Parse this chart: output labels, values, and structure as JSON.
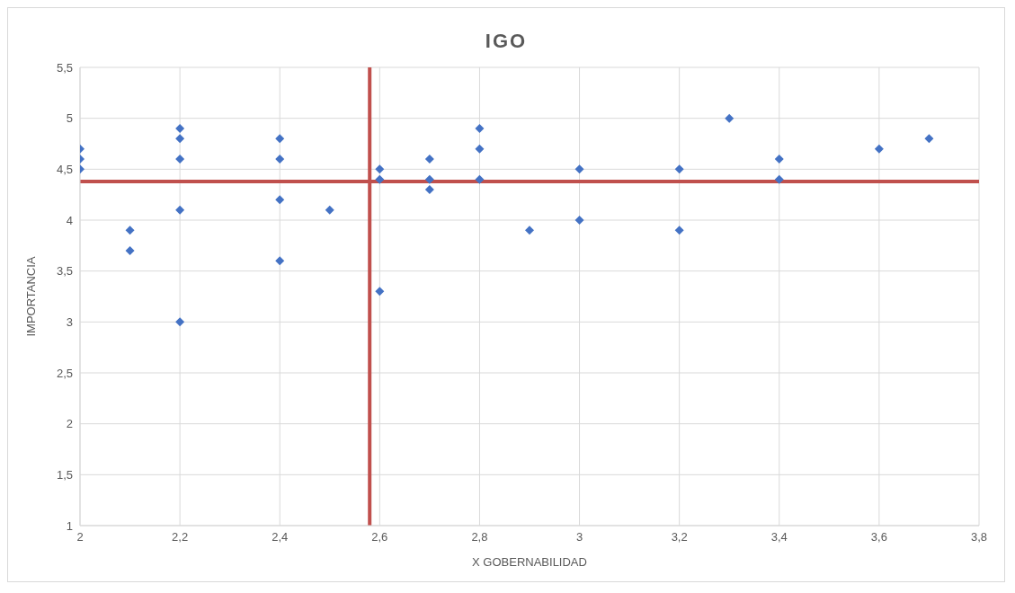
{
  "chart_data": {
    "type": "scatter",
    "title": "IGO",
    "xlabel": "X GOBERNABILIDAD",
    "ylabel": "IMPORTANCIA",
    "x": [
      2,
      2,
      2,
      2.1,
      2.1,
      2.2,
      2.2,
      2.2,
      2.2,
      2.2,
      2.4,
      2.4,
      2.4,
      2.4,
      2.5,
      2.6,
      2.6,
      2.6,
      2.7,
      2.7,
      2.7,
      2.8,
      2.8,
      2.8,
      2.9,
      3,
      3,
      3.2,
      3.2,
      3.3,
      3.4,
      3.4,
      3.6,
      3.7
    ],
    "series": [
      {
        "color": "#4472c4",
        "values": [
          4.7,
          4.6,
          4.5,
          3.9,
          3.7,
          4.9,
          4.8,
          4.6,
          4.1,
          3,
          4.8,
          4.6,
          4.2,
          3.6,
          4.1,
          4.5,
          4.4,
          3.3,
          4.6,
          4.4,
          4.3,
          4.9,
          4.7,
          4.4,
          3.9,
          4.5,
          4,
          4.5,
          3.9,
          5,
          4.6,
          4.4,
          4.7,
          4.8
        ]
      }
    ],
    "xlim": [
      2,
      3.8
    ],
    "xticks": [
      2,
      {
        "value": 2.2,
        "label": "2,2"
      },
      {
        "value": 2.4,
        "label": "2,4"
      },
      {
        "value": 2.6,
        "label": "2,6"
      },
      {
        "value": 2.8,
        "label": "2,8"
      },
      3,
      {
        "value": 3.2,
        "label": "3,2"
      },
      {
        "value": 3.4,
        "label": "3,4"
      },
      {
        "value": 3.6,
        "label": "3,6"
      },
      {
        "value": 3.8,
        "label": "3,8"
      }
    ],
    "ylim": [
      1,
      5.5
    ],
    "yticks": [
      1,
      {
        "value": 1.5,
        "label": "1,5"
      },
      2,
      {
        "value": 2.5,
        "label": "2,5"
      },
      3,
      {
        "value": 3.5,
        "label": "3,5"
      },
      4,
      {
        "value": 4.5,
        "label": "4,5"
      },
      5,
      {
        "value": 5.5,
        "label": "5,5"
      }
    ],
    "ref_lines": [
      {
        "axis": "x",
        "value": 2.58,
        "color": "#c0504d"
      },
      {
        "axis": "y",
        "value": 4.38,
        "color": "#c0504d"
      }
    ],
    "grid": true,
    "marker": "diamond"
  }
}
